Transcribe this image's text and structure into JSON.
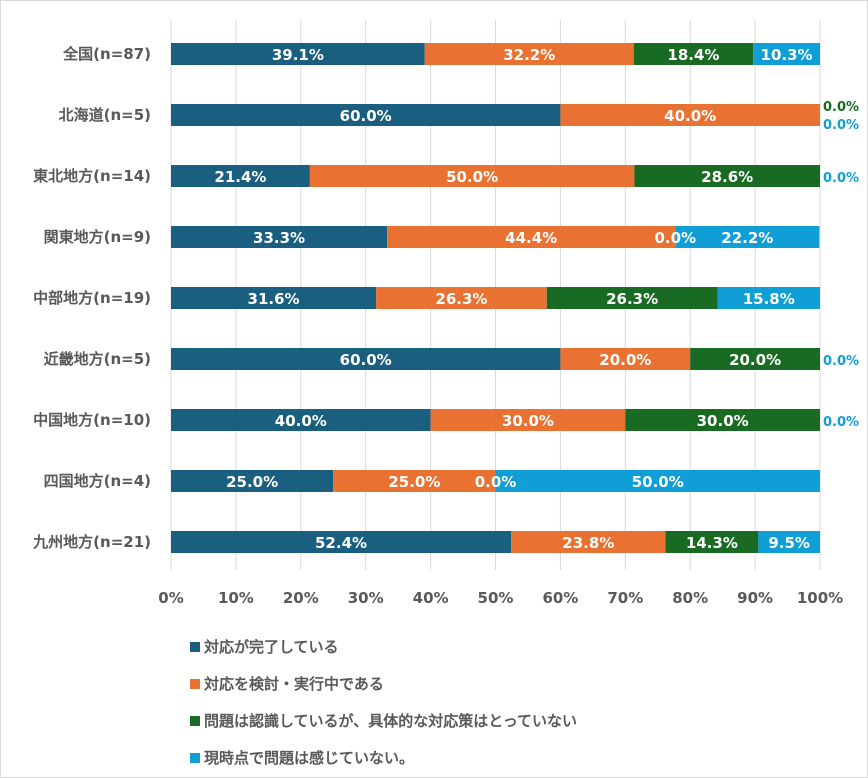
{
  "chart_data": {
    "type": "bar",
    "orientation": "horizontal",
    "stacked": true,
    "categories": [
      "全国(n=87)",
      "北海道(n=5)",
      "東北地方(n=14)",
      "関東地方(n=9)",
      "中部地方(n=19)",
      "近畿地方(n=5)",
      "中国地方(n=10)",
      "四国地方(n=4)",
      "九州地方(n=21)"
    ],
    "series": [
      {
        "name": "対応が完了している",
        "color": "#1A5E80",
        "values": [
          39.1,
          60.0,
          21.4,
          33.3,
          31.6,
          60.0,
          40.0,
          25.0,
          52.4
        ]
      },
      {
        "name": "対応を検討・実行中である",
        "color": "#E97132",
        "values": [
          32.2,
          40.0,
          50.0,
          44.4,
          26.3,
          20.0,
          30.0,
          25.0,
          23.8
        ]
      },
      {
        "name": "問題は認識しているが、具体的な対応策はとっていない",
        "color": "#196B24",
        "values": [
          18.4,
          0.0,
          28.6,
          0.0,
          26.3,
          20.0,
          30.0,
          0.0,
          14.3
        ]
      },
      {
        "name": "現時点で問題は感じていない。",
        "color": "#0F9ED5",
        "values": [
          10.3,
          0.0,
          0.0,
          22.2,
          15.8,
          0.0,
          0.0,
          50.0,
          9.5
        ]
      }
    ],
    "xlim": [
      0,
      100
    ],
    "xticks": [
      "0%",
      "10%",
      "20%",
      "30%",
      "40%",
      "50%",
      "60%",
      "70%",
      "80%",
      "90%",
      "100%"
    ],
    "grid": true,
    "legend_position": "bottom"
  }
}
